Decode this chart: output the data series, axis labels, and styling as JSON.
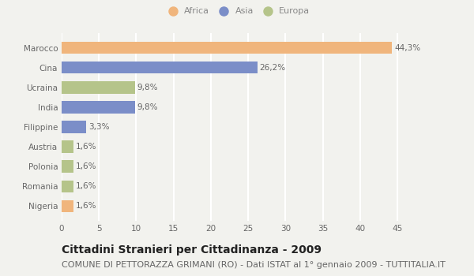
{
  "categories": [
    "Marocco",
    "Cina",
    "Ucraina",
    "India",
    "Filippine",
    "Austria",
    "Polonia",
    "Romania",
    "Nigeria"
  ],
  "values": [
    44.3,
    26.2,
    9.8,
    9.8,
    3.3,
    1.6,
    1.6,
    1.6,
    1.6
  ],
  "labels": [
    "44,3%",
    "26,2%",
    "9,8%",
    "9,8%",
    "3,3%",
    "1,6%",
    "1,6%",
    "1,6%",
    "1,6%"
  ],
  "continents": [
    "Africa",
    "Asia",
    "Europa",
    "Asia",
    "Asia",
    "Europa",
    "Europa",
    "Europa",
    "Africa"
  ],
  "colors": {
    "Africa": "#f0b57c",
    "Asia": "#7b8ec8",
    "Europa": "#b5c48a"
  },
  "legend_order": [
    "Africa",
    "Asia",
    "Europa"
  ],
  "xlim": [
    0,
    47
  ],
  "xticks": [
    0,
    5,
    10,
    15,
    20,
    25,
    30,
    35,
    40,
    45
  ],
  "title": "Cittadini Stranieri per Cittadinanza - 2009",
  "subtitle": "COMUNE DI PETTORAZZA GRIMANI (RO) - Dati ISTAT al 1° gennaio 2009 - TUTTITALIA.IT",
  "bg_color": "#f2f2ee",
  "grid_color": "#ffffff",
  "title_fontsize": 10,
  "subtitle_fontsize": 8,
  "label_fontsize": 7.5,
  "tick_fontsize": 7.5,
  "bar_height": 0.62
}
